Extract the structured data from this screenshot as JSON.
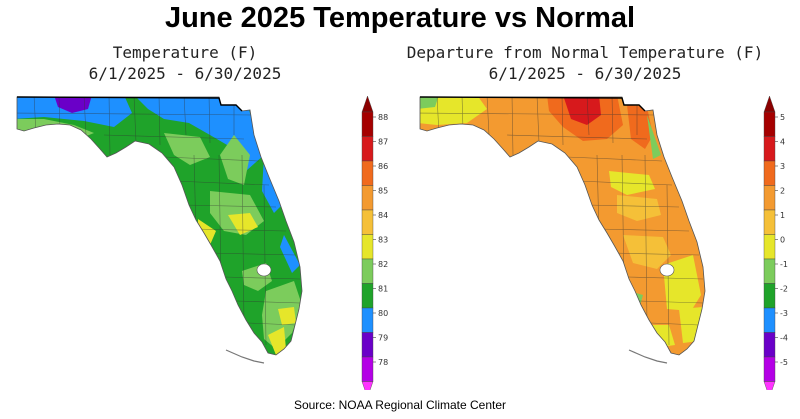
{
  "title": "June 2025 Temperature vs Normal",
  "source": "Source:  NOAA Regional Climate Center",
  "maps": [
    {
      "title": "Temperature (F)",
      "date_range": "6/1/2025 - 6/30/2025",
      "colorbar": {
        "labels": [
          "88",
          "87",
          "86",
          "85",
          "84",
          "83",
          "82",
          "81",
          "80",
          "79",
          "78"
        ],
        "colors": [
          "#a50000",
          "#d7191c",
          "#f06a1d",
          "#f39a30",
          "#f5c038",
          "#e6e62a",
          "#7ccc5c",
          "#1fa32a",
          "#1e90ff",
          "#6a00c8",
          "#b400e6"
        ],
        "top_color": "#8b0000",
        "bottom_color": "#ff33ff"
      }
    },
    {
      "title": "Departure from Normal Temperature (F)",
      "date_range": "6/1/2025 - 6/30/2025",
      "colorbar": {
        "labels": [
          "5",
          "4",
          "3",
          "2",
          "1",
          "0",
          "-1",
          "-2",
          "-3",
          "-4",
          "-5"
        ],
        "colors": [
          "#a50000",
          "#d7191c",
          "#f06a1d",
          "#f39a30",
          "#f5c038",
          "#e6e62a",
          "#7ccc5c",
          "#1fa32a",
          "#1e90ff",
          "#6a00c8",
          "#b400e6"
        ],
        "top_color": "#8b0000",
        "bottom_color": "#ff33ff"
      }
    }
  ]
}
